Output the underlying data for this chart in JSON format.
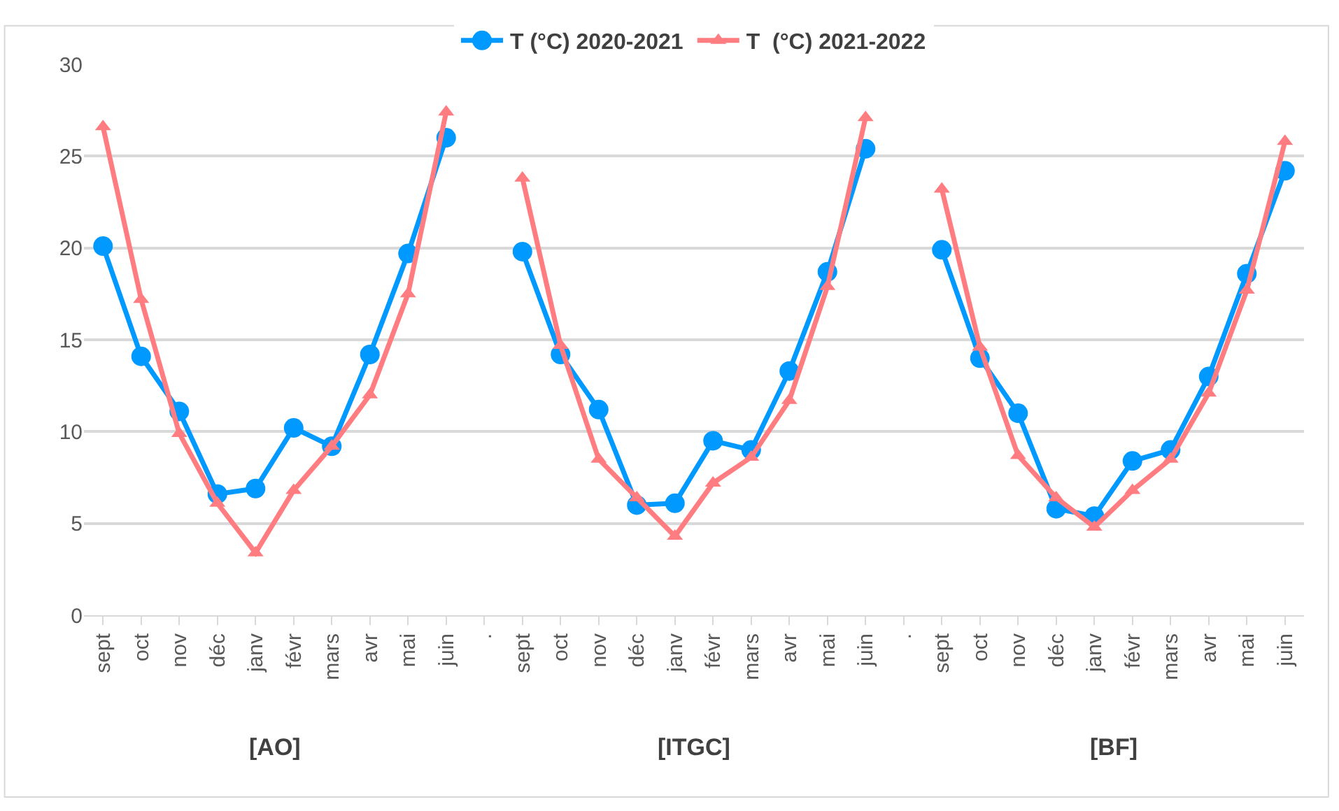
{
  "chart_data": {
    "type": "line",
    "categories": [
      "sept",
      "oct",
      "nov",
      "déc",
      "janv",
      "févr",
      "mars",
      "avr",
      "mai",
      "juin",
      ".",
      "sept",
      "oct",
      "nov",
      "déc",
      "janv",
      "févr",
      "mars",
      "avr",
      "mai",
      "juin",
      ".",
      "sept",
      "oct",
      "nov",
      "déc",
      "janv",
      "févr",
      "mars",
      "avr",
      "mai",
      "juin"
    ],
    "series": [
      {
        "name": "T (°C) 2020-2021",
        "color": "#0099ff",
        "marker": "circle",
        "values": [
          20.1,
          14.1,
          11.1,
          6.6,
          6.9,
          10.2,
          9.2,
          14.2,
          19.7,
          26.0,
          null,
          19.8,
          14.2,
          11.2,
          6.0,
          6.1,
          9.5,
          9.0,
          13.3,
          18.7,
          25.4,
          null,
          19.9,
          14.0,
          11.0,
          5.8,
          5.4,
          8.4,
          9.0,
          13.0,
          18.6,
          24.2
        ]
      },
      {
        "name": "T  (°C) 2021-2022",
        "color": "#ff7c80",
        "marker": "triangle",
        "values": [
          26.6,
          17.2,
          9.9,
          6.1,
          3.4,
          6.8,
          9.2,
          12.0,
          17.5,
          27.4,
          null,
          23.8,
          14.7,
          8.5,
          6.4,
          4.3,
          7.2,
          8.6,
          11.7,
          17.9,
          27.1,
          null,
          23.2,
          14.6,
          8.7,
          6.4,
          4.8,
          6.8,
          8.5,
          12.1,
          17.7,
          25.8
        ]
      }
    ],
    "ylim": [
      0,
      30
    ],
    "yticks": [
      0,
      5,
      10,
      15,
      20,
      25,
      30
    ],
    "grid": "y",
    "legend": "top",
    "line_style": "solid",
    "annotations": [
      "[AO]",
      "[ITGC]",
      "[BF]"
    ]
  }
}
